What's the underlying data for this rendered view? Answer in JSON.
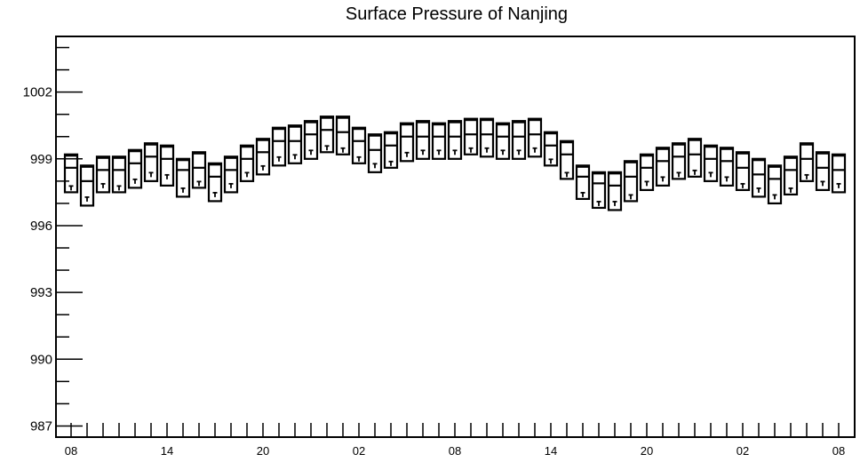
{
  "chart_data": {
    "type": "boxplot",
    "title": "Surface Pressure of Nanjing",
    "xlabel": "",
    "ylabel": "",
    "ylim": [
      986.5,
      1004.5
    ],
    "y_ticks": [
      987,
      990,
      993,
      996,
      999,
      1002
    ],
    "y_tick_labels": [
      "987",
      "990",
      "993",
      "996",
      "999",
      "1002"
    ],
    "x_tick_labels": [
      "08",
      "14",
      "20",
      "02",
      "08",
      "14",
      "20",
      "02",
      "08"
    ],
    "x_tick_label_index": [
      0,
      6,
      12,
      18,
      24,
      30,
      36,
      42,
      48
    ],
    "series": [
      {
        "box_top": [
          999.2,
          998.7,
          999.1,
          999.1,
          999.4,
          999.7,
          999.6,
          999.0,
          999.3,
          998.8,
          999.1,
          999.6,
          999.9,
          1000.4,
          1000.5,
          1000.7,
          1000.9,
          1000.9,
          1000.4,
          1000.1,
          1000.2,
          1000.6,
          1000.7,
          1000.6,
          1000.7,
          1000.8,
          1000.8,
          1000.6,
          1000.7,
          1000.8,
          1000.2,
          999.8,
          998.7,
          998.4,
          998.4,
          998.9,
          999.2,
          999.5,
          999.7,
          999.9,
          999.6,
          999.5,
          999.3,
          999.0,
          998.7,
          999.1,
          999.7,
          999.3,
          999.2
        ],
        "median": [
          998.6,
          998.0,
          998.5,
          998.5,
          998.8,
          999.1,
          999.0,
          998.5,
          998.6,
          998.2,
          998.5,
          999.0,
          999.3,
          999.8,
          999.8,
          1000.1,
          1000.3,
          1000.2,
          999.8,
          999.4,
          999.6,
          1000.0,
          1000.0,
          1000.0,
          1000.0,
          1000.1,
          1000.1,
          1000.0,
          1000.0,
          1000.1,
          999.6,
          999.2,
          998.2,
          997.9,
          997.8,
          998.2,
          998.6,
          998.9,
          999.1,
          999.2,
          999.0,
          998.9,
          998.6,
          998.3,
          998.1,
          998.5,
          999.0,
          998.6,
          998.5
        ],
        "box_bottom": [
          997.5,
          996.9,
          997.5,
          997.5,
          997.7,
          998.0,
          997.8,
          997.3,
          997.7,
          997.1,
          997.5,
          998.0,
          998.3,
          998.7,
          998.8,
          999.0,
          999.3,
          999.2,
          998.8,
          998.4,
          998.6,
          998.9,
          999.0,
          999.0,
          999.0,
          999.2,
          999.1,
          999.0,
          999.0,
          999.1,
          998.7,
          998.1,
          997.2,
          996.8,
          996.7,
          997.1,
          997.6,
          997.8,
          998.1,
          998.2,
          998.0,
          997.8,
          997.6,
          997.3,
          997.0,
          997.4,
          998.0,
          997.6,
          997.5
        ],
        "marker": [
          997.7,
          997.2,
          997.8,
          997.7,
          998.0,
          998.3,
          998.2,
          997.6,
          997.9,
          997.4,
          997.8,
          998.3,
          998.6,
          999.0,
          999.1,
          999.3,
          999.5,
          999.4,
          999.0,
          998.7,
          998.8,
          999.2,
          999.3,
          999.3,
          999.3,
          999.4,
          999.4,
          999.3,
          999.3,
          999.4,
          998.9,
          998.3,
          997.4,
          997.0,
          997.0,
          997.3,
          997.9,
          998.1,
          998.3,
          998.4,
          998.3,
          998.1,
          997.8,
          997.6,
          997.3,
          997.6,
          998.2,
          997.9,
          997.8
        ]
      }
    ],
    "grid": false,
    "legend": "none"
  }
}
